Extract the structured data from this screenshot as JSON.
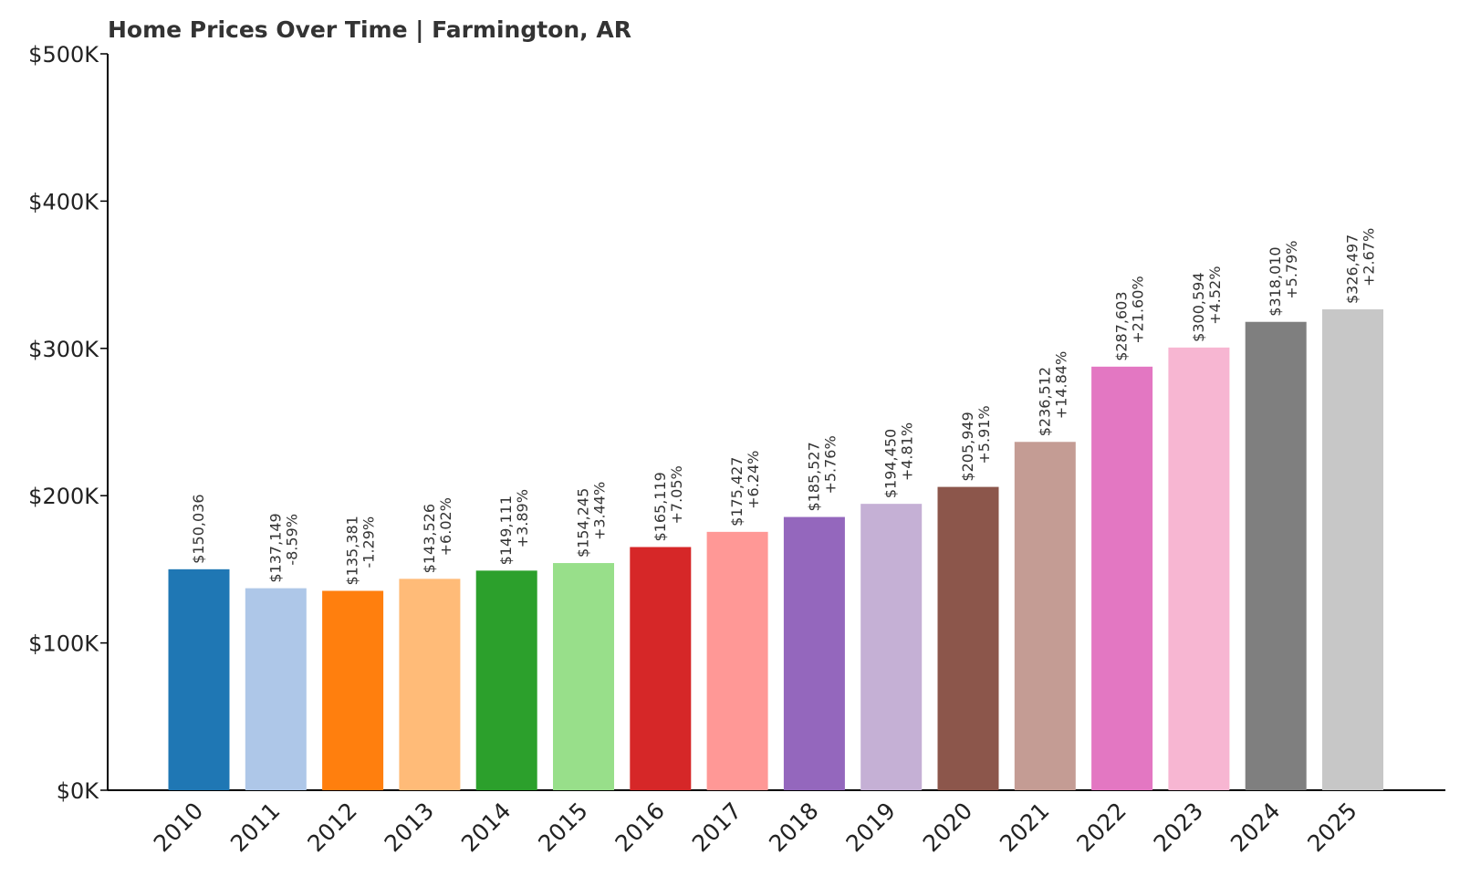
{
  "chart_data": {
    "type": "bar",
    "title": "Home Prices Over Time | Farmington, AR",
    "xlabel": "",
    "ylabel": "",
    "ylim": [
      0,
      500000
    ],
    "yticks": [
      {
        "value": 0,
        "label": "$0K"
      },
      {
        "value": 100000,
        "label": "$100K"
      },
      {
        "value": 200000,
        "label": "$200K"
      },
      {
        "value": 300000,
        "label": "$300K"
      },
      {
        "value": 400000,
        "label": "$400K"
      },
      {
        "value": 500000,
        "label": "$500K"
      }
    ],
    "grid": false,
    "categories": [
      "2010",
      "2011",
      "2012",
      "2013",
      "2014",
      "2015",
      "2016",
      "2017",
      "2018",
      "2019",
      "2020",
      "2021",
      "2022",
      "2023",
      "2024",
      "2025"
    ],
    "values": [
      150036,
      137149,
      135381,
      143526,
      149111,
      154245,
      165119,
      175427,
      185527,
      194450,
      205949,
      236512,
      287603,
      300594,
      318010,
      326497
    ],
    "value_labels": [
      "$150,036",
      "$137,149",
      "$135,381",
      "$143,526",
      "$149,111",
      "$154,245",
      "$165,119",
      "$175,427",
      "$185,527",
      "$194,450",
      "$205,949",
      "$236,512",
      "$287,603",
      "$300,594",
      "$318,010",
      "$326,497"
    ],
    "change_labels": [
      "",
      "-8.59%",
      "-1.29%",
      "+6.02%",
      "+3.89%",
      "+3.44%",
      "+7.05%",
      "+6.24%",
      "+5.76%",
      "+4.81%",
      "+5.91%",
      "+14.84%",
      "+21.60%",
      "+4.52%",
      "+5.79%",
      "+2.67%"
    ],
    "colors": [
      "#1f77b4",
      "#aec7e8",
      "#ff7f0e",
      "#ffbb78",
      "#2ca02c",
      "#98df8a",
      "#d62728",
      "#ff9896",
      "#9467bd",
      "#c5b0d5",
      "#8c564b",
      "#c49c94",
      "#e377c2",
      "#f7b6d2",
      "#7f7f7f",
      "#c7c7c7"
    ]
  }
}
